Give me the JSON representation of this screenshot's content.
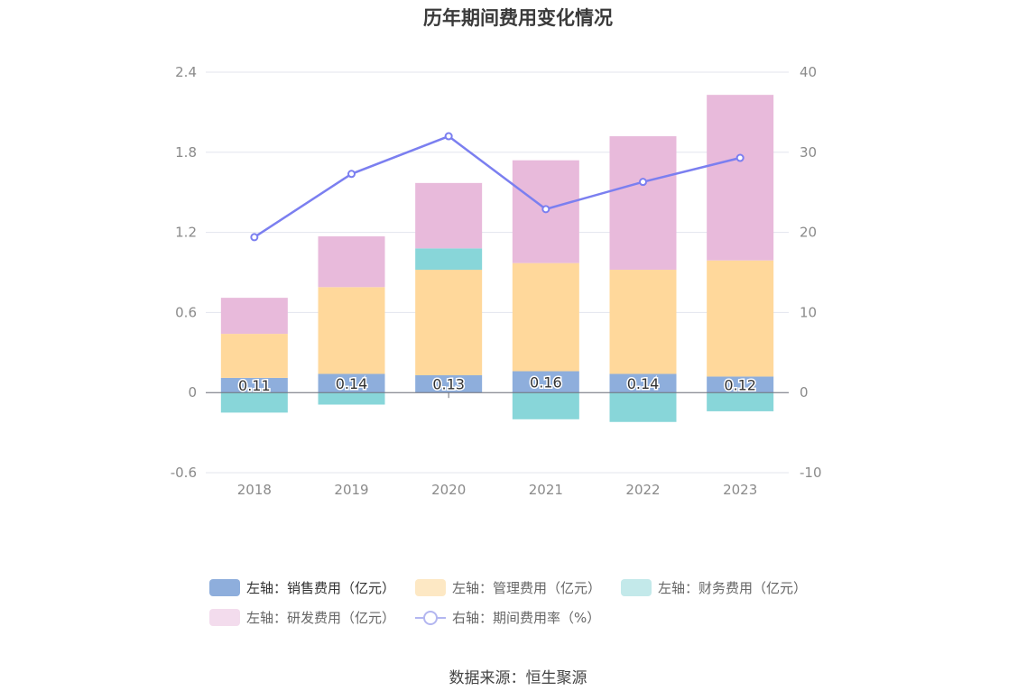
{
  "title": "历年期间费用变化情况",
  "source": "数据来源：恒生聚源",
  "chart_data": {
    "type": "bar",
    "stacked": true,
    "categories": [
      "2018",
      "2019",
      "2020",
      "2021",
      "2022",
      "2023"
    ],
    "series": [
      {
        "name": "左轴：销售费用（亿元）",
        "axis": "left",
        "color": "#8eaedc",
        "values": [
          0.11,
          0.14,
          0.13,
          0.16,
          0.14,
          0.12
        ],
        "labels": [
          "0.11",
          "0.14",
          "0.13",
          "0.16",
          "0.14",
          "0.12"
        ]
      },
      {
        "name": "左轴：管理费用（亿元）",
        "axis": "left",
        "color": "#ffd89b",
        "values": [
          0.33,
          0.65,
          0.79,
          0.81,
          0.78,
          0.87
        ]
      },
      {
        "name": "左轴：财务费用（亿元）",
        "axis": "left",
        "color": "#88d6d9",
        "values": [
          -0.15,
          -0.09,
          0.16,
          -0.2,
          -0.22,
          -0.14
        ]
      },
      {
        "name": "左轴：研发费用（亿元）",
        "axis": "left",
        "color": "#e8badb",
        "values": [
          0.27,
          0.38,
          0.49,
          0.77,
          1.0,
          1.24
        ]
      }
    ],
    "line_series": [
      {
        "name": "右轴：期间费用率（%）",
        "axis": "right",
        "color": "#7b7ff0",
        "values": [
          19.4,
          27.3,
          32.0,
          22.9,
          26.3,
          29.3
        ]
      }
    ],
    "left_axis": {
      "min": -0.6,
      "max": 2.4,
      "ticks": [
        "-0.6",
        "0",
        "0.6",
        "1.2",
        "1.8",
        "2.4"
      ]
    },
    "right_axis": {
      "min": -10,
      "max": 40,
      "ticks": [
        "-10",
        "0",
        "10",
        "20",
        "30",
        "40"
      ]
    },
    "grid": true,
    "legend_position": "bottom"
  }
}
